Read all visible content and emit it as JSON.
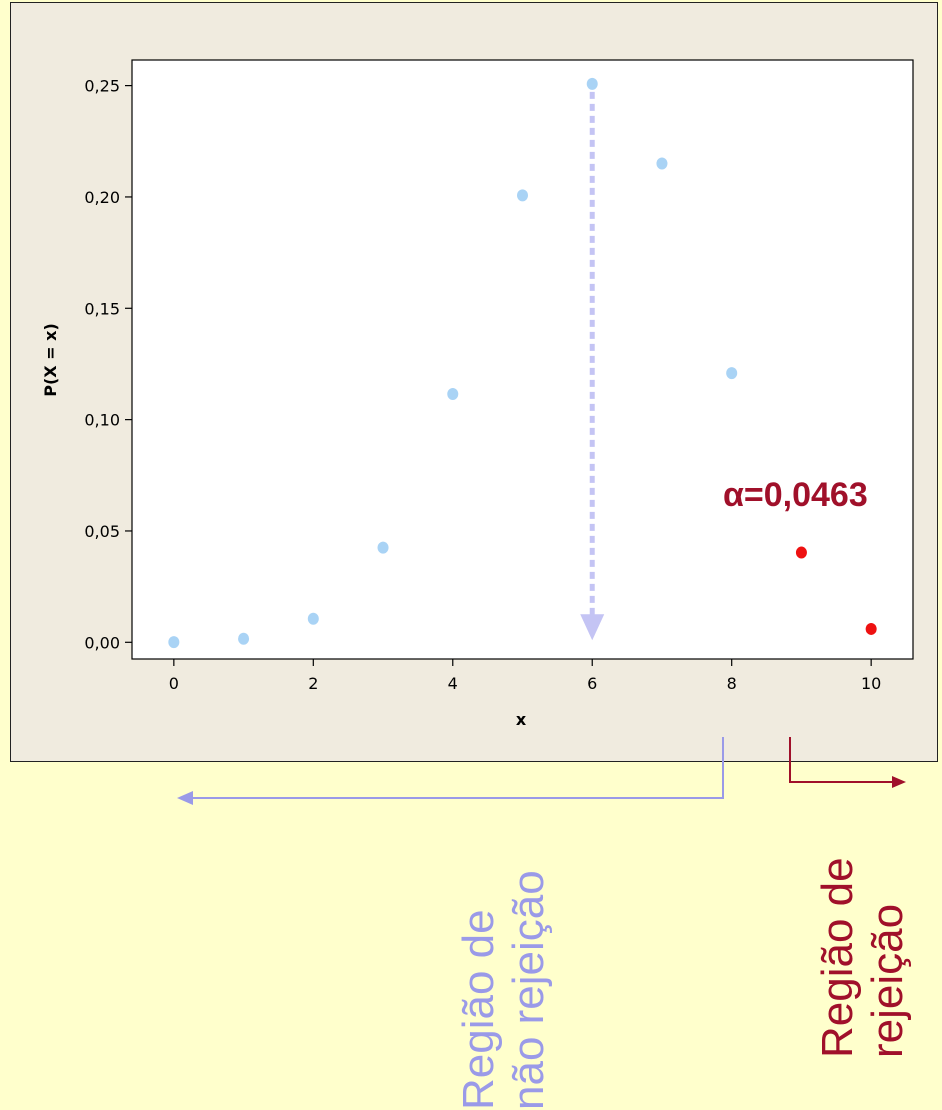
{
  "chart_data": {
    "type": "scatter",
    "title": "",
    "xlabel": "x",
    "ylabel": "P(X = x)",
    "xlim": [
      -0.6,
      10.6
    ],
    "ylim": [
      -0.0075,
      0.2615
    ],
    "xticks": [
      0,
      2,
      4,
      6,
      8,
      10
    ],
    "xtick_labels": [
      "0",
      "2",
      "4",
      "6",
      "8",
      "10"
    ],
    "yticks": [
      0.0,
      0.05,
      0.1,
      0.15,
      0.2,
      0.25
    ],
    "ytick_labels": [
      "0,00",
      "0,05",
      "0,10",
      "0,15",
      "0,20",
      "0,25"
    ],
    "grid": false,
    "series": [
      {
        "color": "#a9d3f5",
        "x": [
          0,
          1,
          2,
          3,
          4,
          5,
          6,
          7,
          8
        ],
        "y": [
          0.0001,
          0.0016,
          0.0106,
          0.0425,
          0.1115,
          0.2007,
          0.2508,
          0.215,
          0.1209
        ]
      },
      {
        "color": "#ee1111",
        "x": [
          9,
          10
        ],
        "y": [
          0.0403,
          0.006
        ]
      }
    ],
    "annotations": {
      "alpha_label": "α=0,0463",
      "alpha_color": "#a0102a",
      "mean_arrow_color": "#c4c4f4"
    }
  },
  "regions": {
    "non_rejection_line1": "Região de",
    "non_rejection_line2": "não rejeição",
    "non_rejection_color": "#9a9ae8",
    "rejection_line1": "Região de",
    "rejection_line2": "rejeição",
    "rejection_color": "#a0102a"
  }
}
